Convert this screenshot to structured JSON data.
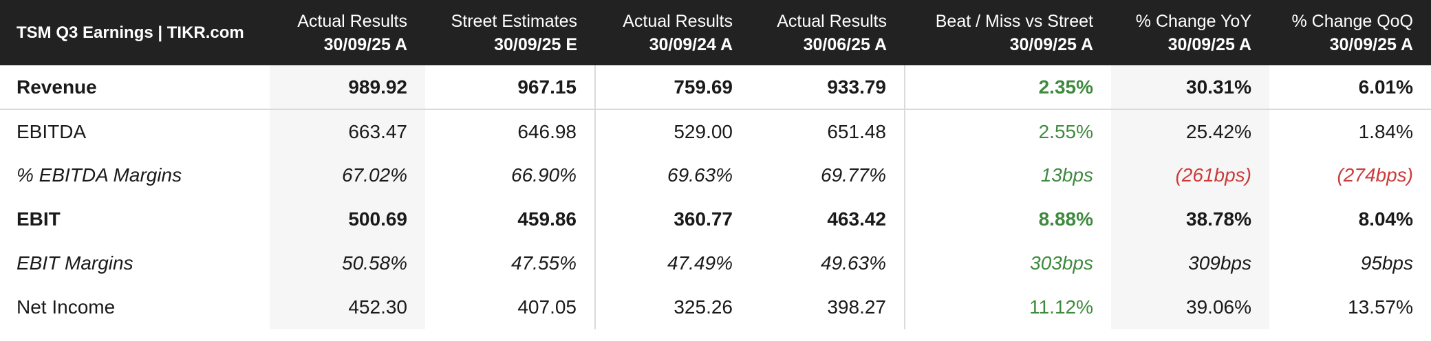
{
  "header": {
    "title": "TSM Q3 Earnings | TIKR.com",
    "columns": [
      {
        "line1": "Actual Results",
        "line2": "30/09/25 A"
      },
      {
        "line1": "Street Estimates",
        "line2": "30/09/25 E"
      },
      {
        "line1": "Actual Results",
        "line2": "30/09/24 A"
      },
      {
        "line1": "Actual Results",
        "line2": "30/06/25 A"
      },
      {
        "line1": "Beat / Miss vs Street",
        "line2": "30/09/25 A"
      },
      {
        "line1": "% Change YoY",
        "line2": "30/09/25 A"
      },
      {
        "line1": "% Change QoQ",
        "line2": "30/09/25 A"
      }
    ]
  },
  "rows": [
    {
      "label": "Revenue",
      "values": [
        "989.92",
        "967.15",
        "759.69",
        "933.79",
        "2.35%",
        "30.31%",
        "6.01%"
      ]
    },
    {
      "label": "EBITDA",
      "values": [
        "663.47",
        "646.98",
        "529.00",
        "651.48",
        "2.55%",
        "25.42%",
        "1.84%"
      ]
    },
    {
      "label": "% EBITDA Margins",
      "values": [
        "67.02%",
        "66.90%",
        "69.63%",
        "69.77%",
        "13bps",
        "(261bps)",
        "(274bps)"
      ]
    },
    {
      "label": "EBIT",
      "values": [
        "500.69",
        "459.86",
        "360.77",
        "463.42",
        "8.88%",
        "38.78%",
        "8.04%"
      ]
    },
    {
      "label": "EBIT Margins",
      "values": [
        "50.58%",
        "47.55%",
        "47.49%",
        "49.63%",
        "303bps",
        "309bps",
        "95bps"
      ]
    },
    {
      "label": "Net Income",
      "values": [
        "452.30",
        "407.05",
        "325.26",
        "398.27",
        "11.12%",
        "39.06%",
        "13.57%"
      ]
    }
  ],
  "colors": {
    "header_bg": "#222222",
    "positive": "#3f8a3f",
    "negative": "#cc3b3b",
    "shaded_column": "#f6f6f6"
  }
}
